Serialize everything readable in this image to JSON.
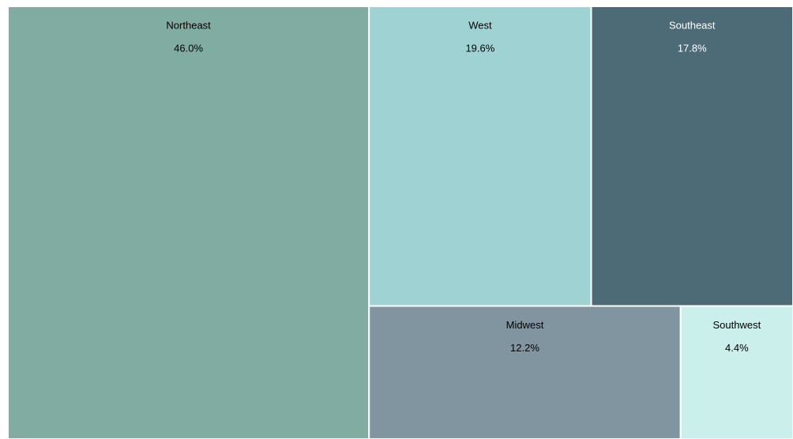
{
  "chart_data": {
    "type": "treemap",
    "categories": [
      "Northeast",
      "West",
      "Southeast",
      "Midwest",
      "Southwest"
    ],
    "values": [
      46.0,
      19.6,
      17.8,
      12.2,
      4.4
    ],
    "value_labels": [
      "46.0%",
      "19.6%",
      "17.8%",
      "12.2%",
      "4.4%"
    ],
    "colors": [
      "#80aca2",
      "#9fd3d3",
      "#4d6b77",
      "#8195a0",
      "#cbf0ec"
    ]
  }
}
